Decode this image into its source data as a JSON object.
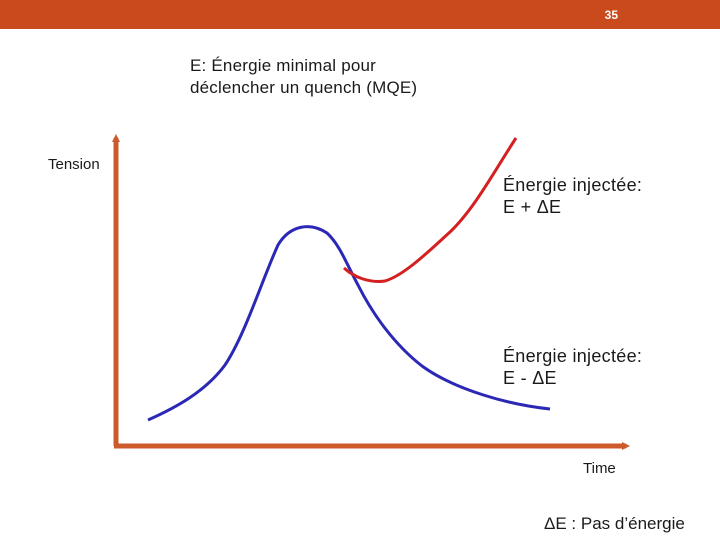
{
  "slide": {
    "number": "35"
  },
  "definition": "E: Énergie minimal pour\ndéclencher un quench (MQE)",
  "axes": {
    "y_label": "Tension",
    "x_label": "Time"
  },
  "curves": [
    {
      "id": "plus",
      "label": "Énergie injectée:\nE + ΔE",
      "color": "#d42020"
    },
    {
      "id": "minus",
      "label": "Énergie injectée:\nE - ΔE",
      "color": "#2a28b4"
    }
  ],
  "axis_color": "#cc5a2a",
  "note": "ΔE : Pas d’énergie"
}
